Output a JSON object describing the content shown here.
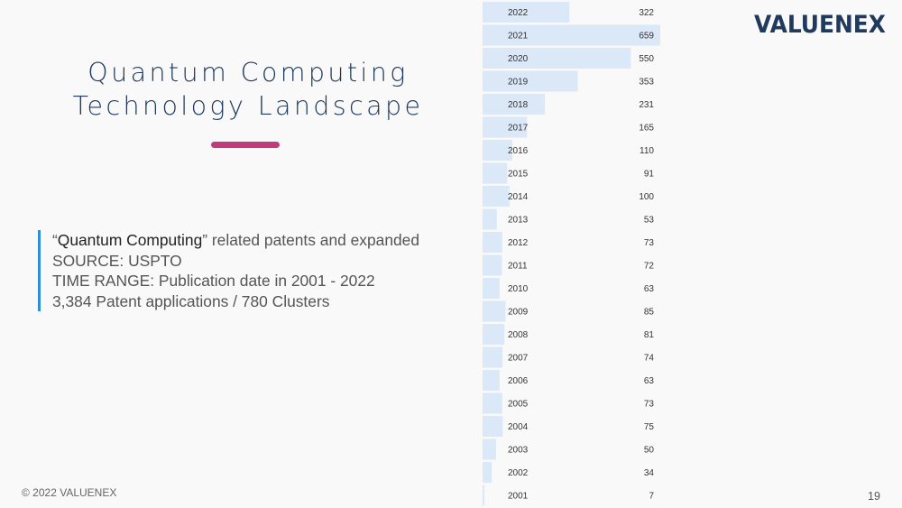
{
  "slide": {
    "title_line1": "Quantum Computing",
    "title_line2": "Technology Landscape",
    "desc_quote_open": "“",
    "desc_term": "Quantum Computing",
    "desc_rest": "” related patents and expanded",
    "desc_line2": "SOURCE: USPTO",
    "desc_line3": "TIME RANGE: Publication date in 2001 - 2022",
    "desc_line4": "3,384 Patent applications  /  780 Clusters",
    "copyright": "© 2022 VALUENEX",
    "page_number": "19",
    "logo_text": "VALUENEX"
  },
  "colors": {
    "title": "#1f3a5c",
    "accent": "#c23b7c",
    "desc_border": "#2d8fd5",
    "bar": "#dbe8f8",
    "logo": "#1f3a5c"
  },
  "chart_data": {
    "type": "bar",
    "orientation": "horizontal",
    "title": "",
    "xlabel": "",
    "ylabel": "",
    "categories": [
      "2022",
      "2021",
      "2020",
      "2019",
      "2018",
      "2017",
      "2016",
      "2015",
      "2014",
      "2013",
      "2012",
      "2011",
      "2010",
      "2009",
      "2008",
      "2007",
      "2006",
      "2005",
      "2004",
      "2003",
      "2002",
      "2001"
    ],
    "values": [
      322,
      659,
      550,
      353,
      231,
      165,
      110,
      91,
      100,
      53,
      73,
      72,
      63,
      85,
      81,
      74,
      63,
      73,
      75,
      50,
      34,
      7
    ],
    "xlim": [
      0,
      659
    ],
    "grid": false,
    "legend": "none"
  }
}
